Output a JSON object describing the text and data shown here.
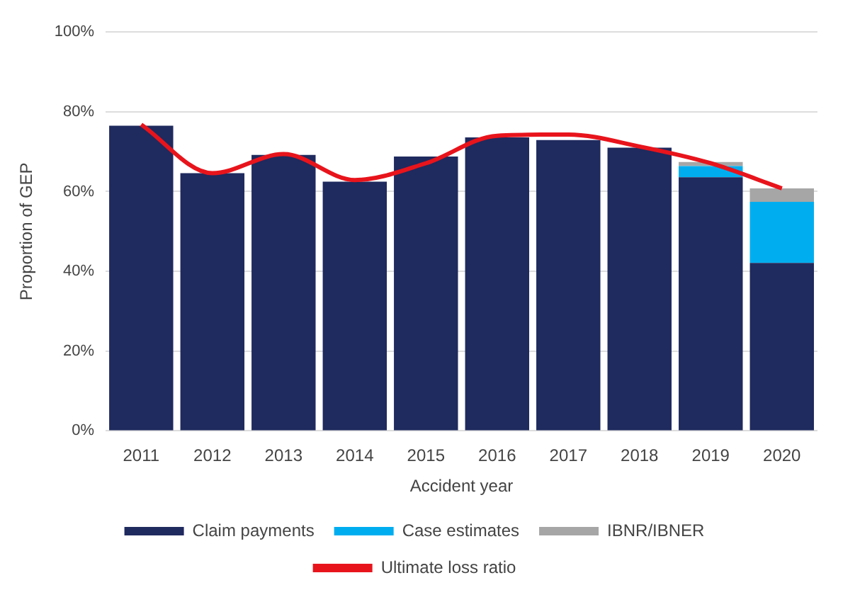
{
  "chart_data": {
    "type": "bar",
    "xlabel": "Accident year",
    "ylabel": "Proportion of GEP",
    "categories": [
      "2011",
      "2012",
      "2013",
      "2014",
      "2015",
      "2016",
      "2017",
      "2018",
      "2019",
      "2020"
    ],
    "stacked": true,
    "series": [
      {
        "name": "Claim payments",
        "color": "#1f2a5e",
        "values": [
          76.5,
          64.6,
          69.2,
          62.5,
          68.8,
          73.6,
          72.9,
          71.0,
          63.6,
          42.1
        ]
      },
      {
        "name": "Case estimates",
        "color": "#00aeef",
        "values": [
          0,
          0,
          0,
          0,
          0,
          0,
          0,
          0,
          2.8,
          15.3
        ]
      },
      {
        "name": "IBNR/IBNER",
        "color": "#a6a6a6",
        "values": [
          0,
          0,
          0,
          0,
          0,
          0,
          0,
          0,
          1.0,
          3.4
        ]
      },
      {
        "name": "Ultimate loss ratio",
        "type": "line",
        "color": "#e8141c",
        "values": [
          76.8,
          64.6,
          69.4,
          62.9,
          67.1,
          74.0,
          74.3,
          71.3,
          67.1,
          60.8
        ]
      }
    ],
    "ylim": [
      0,
      100
    ],
    "yticks": [
      {
        "value": 0,
        "label": "0%"
      },
      {
        "value": 20,
        "label": "20%"
      },
      {
        "value": 40,
        "label": "40%"
      },
      {
        "value": 60,
        "label": "60%"
      },
      {
        "value": 80,
        "label": "80%"
      },
      {
        "value": 100,
        "label": "100%"
      }
    ],
    "grid": "y",
    "legend": "bottom",
    "marker": "none"
  }
}
